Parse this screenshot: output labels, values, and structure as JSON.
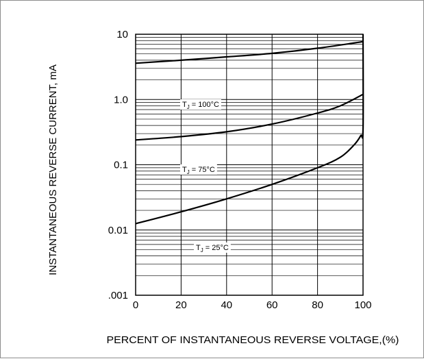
{
  "chart_data": {
    "type": "line",
    "title": "",
    "xlabel": "PERCENT OF INSTANTANEOUS REVERSE VOLTAGE,(%)",
    "ylabel": "INSTANTANEOUS REVERSE CURRENT, mA",
    "xlim": [
      0,
      100
    ],
    "ylim": [
      0.001,
      10
    ],
    "y_scale": "log",
    "grid": true,
    "legend": "none",
    "x_ticks": [
      "0",
      "20",
      "40",
      "60",
      "80",
      "100"
    ],
    "y_ticks": [
      {
        "value": 10,
        "label": "10"
      },
      {
        "value": 1,
        "label": "1.0"
      },
      {
        "value": 0.1,
        "label": "0.1"
      },
      {
        "value": 0.01,
        "label": "0.01"
      },
      {
        "value": 0.001,
        "label": ".001"
      }
    ],
    "series": [
      {
        "name": "TJ = 100°C",
        "x": [
          0,
          20,
          40,
          60,
          80,
          100
        ],
        "y": [
          3.6,
          4.0,
          4.5,
          5.1,
          6.1,
          7.7
        ]
      },
      {
        "name": "TJ = 75°C",
        "x": [
          0,
          20,
          40,
          60,
          80,
          90,
          100
        ],
        "y": [
          0.24,
          0.27,
          0.32,
          0.42,
          0.62,
          0.8,
          1.2
        ]
      },
      {
        "name": "TJ = 25°C",
        "x": [
          0,
          20,
          40,
          60,
          80,
          90,
          96,
          99,
          100,
          100
        ],
        "y": [
          0.0125,
          0.019,
          0.03,
          0.05,
          0.09,
          0.13,
          0.2,
          0.28,
          0.35,
          10
        ]
      }
    ],
    "annotations": [
      {
        "sub": "J",
        "value": "= 100°C"
      },
      {
        "sub": "J",
        "value": "= 75°C"
      },
      {
        "sub": "J",
        "value": "= 25°C"
      }
    ],
    "colors": {
      "line": "#000000",
      "grid": "#000000",
      "frame": "#8c8c8c"
    }
  }
}
